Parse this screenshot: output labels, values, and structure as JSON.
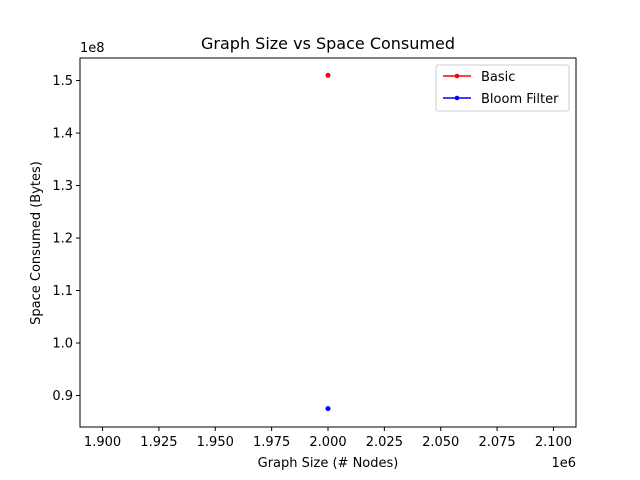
{
  "chart_data": {
    "type": "line",
    "title": "Graph Size vs Space Consumed",
    "xlabel": "Graph Size (# Nodes)",
    "ylabel": "Space Consumed (Bytes)",
    "x_offset_label": "1e6",
    "y_offset_label": "1e8",
    "x_scale": 1000000,
    "y_scale": 100000000,
    "xlim": [
      1890000,
      2110000
    ],
    "ylim": [
      84000000,
      154300000
    ],
    "x_ticks": [
      1900000,
      1925000,
      1950000,
      1975000,
      2000000,
      2025000,
      2050000,
      2075000,
      2100000
    ],
    "x_tick_labels": [
      "1.900",
      "1.925",
      "1.950",
      "1.975",
      "2.000",
      "2.025",
      "2.050",
      "2.075",
      "2.100"
    ],
    "y_ticks": [
      90000000,
      100000000,
      110000000,
      120000000,
      130000000,
      140000000,
      150000000
    ],
    "y_tick_labels": [
      "0.9",
      "1.0",
      "1.1",
      "1.2",
      "1.3",
      "1.4",
      "1.5"
    ],
    "grid": false,
    "legend_position": "upper right",
    "series": [
      {
        "name": "Basic",
        "color": "#ff0000",
        "x": [
          2000000
        ],
        "y": [
          151000000
        ]
      },
      {
        "name": "Bloom Filter",
        "color": "#0000ff",
        "x": [
          2000000
        ],
        "y": [
          87500000
        ]
      }
    ]
  }
}
